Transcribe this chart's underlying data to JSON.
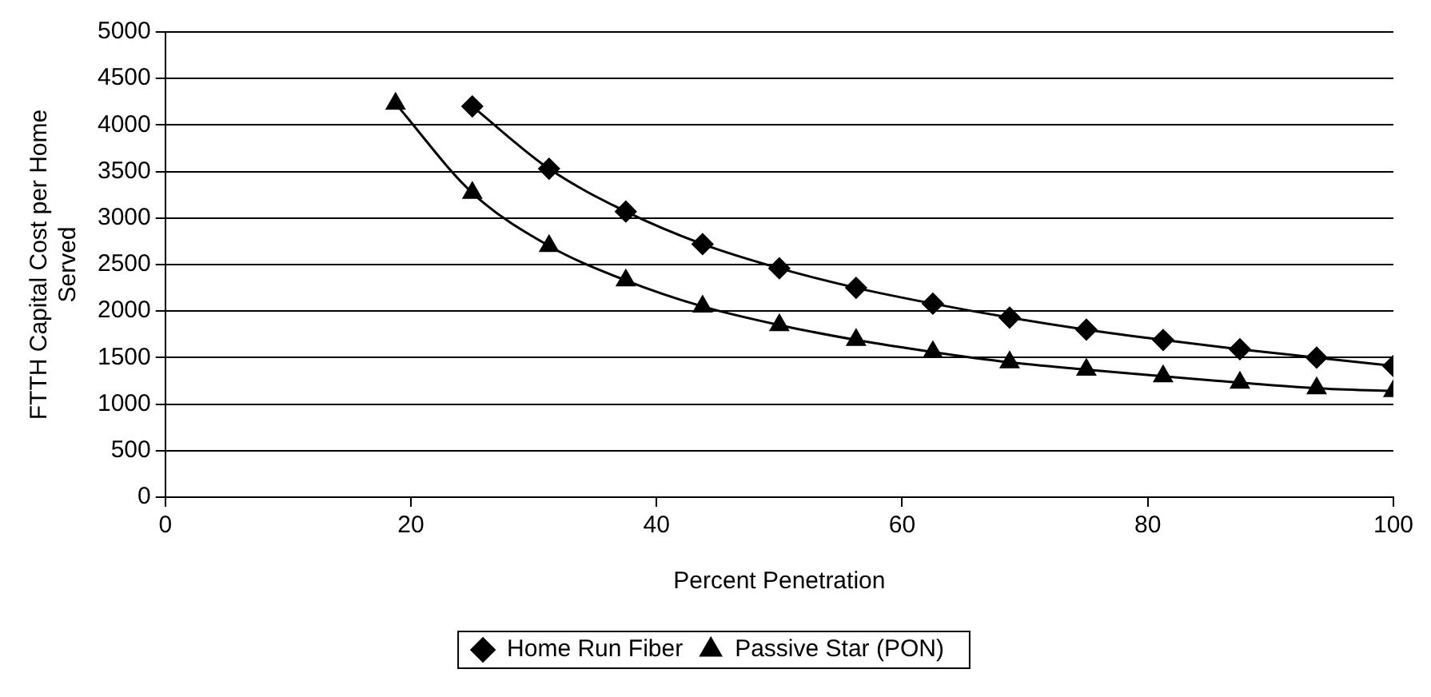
{
  "chart_data": {
    "type": "line",
    "xlabel": "Percent Penetration",
    "ylabel": "FTTH Capital Cost per Home Served",
    "xlim": [
      0,
      100
    ],
    "xticks": [
      0,
      20,
      40,
      60,
      80,
      100
    ],
    "ylim": [
      0,
      5000
    ],
    "yticks": [
      0,
      500,
      1000,
      1500,
      2000,
      2500,
      3000,
      3500,
      4000,
      4500,
      5000
    ],
    "grid": "y",
    "legend": "bottom",
    "line_style": "solid",
    "series": [
      {
        "name": "Home Run Fiber",
        "color": "#000000",
        "marker": "diamond",
        "x": [
          25,
          31.25,
          37.5,
          43.75,
          50,
          56.25,
          62.5,
          68.75,
          75,
          81.25,
          87.5,
          93.75,
          100
        ],
        "values": [
          4200,
          3530,
          3070,
          2720,
          2460,
          2250,
          2080,
          1930,
          1800,
          1690,
          1590,
          1500,
          1410
        ]
      },
      {
        "name": "Passive Star (PON)",
        "color": "#000000",
        "marker": "triangle",
        "x": [
          18.75,
          25,
          31.25,
          37.5,
          43.75,
          50,
          56.25,
          62.5,
          68.75,
          75,
          81.25,
          87.5,
          93.75,
          100
        ],
        "values": [
          4230,
          3270,
          2700,
          2330,
          2050,
          1850,
          1690,
          1560,
          1450,
          1370,
          1300,
          1230,
          1170,
          1140
        ]
      }
    ]
  }
}
